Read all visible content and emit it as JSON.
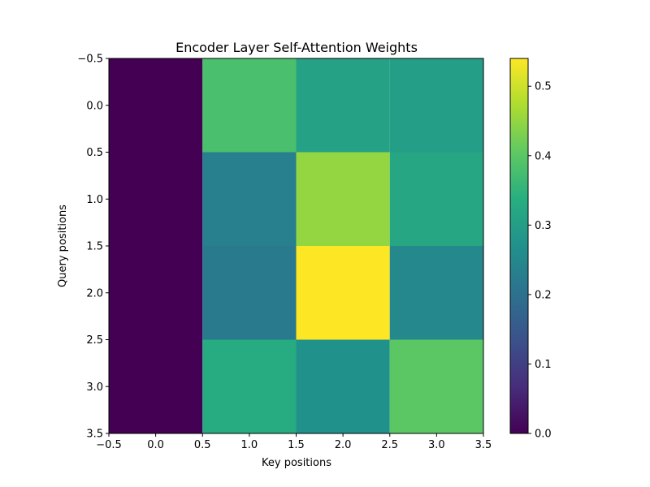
{
  "chart_data": {
    "type": "heatmap",
    "title": "Encoder Layer Self-Attention Weights",
    "xlabel": "Key positions",
    "ylabel": "Query positions",
    "xlim": [
      -0.5,
      3.5
    ],
    "ylim": [
      3.5,
      -0.5
    ],
    "x_ticks": [
      "−0.5",
      "0.0",
      "0.5",
      "1.0",
      "1.5",
      "2.0",
      "2.5",
      "3.0",
      "3.5"
    ],
    "y_ticks": [
      "−0.5",
      "0.0",
      "0.5",
      "1.0",
      "1.5",
      "2.0",
      "2.5",
      "3.0",
      "3.5"
    ],
    "matrix": [
      [
        0.0,
        0.38,
        0.31,
        0.3
      ],
      [
        0.0,
        0.23,
        0.45,
        0.32
      ],
      [
        0.0,
        0.22,
        0.54,
        0.25
      ],
      [
        0.0,
        0.33,
        0.27,
        0.4
      ]
    ],
    "colormap": "viridis",
    "colorbar": {
      "vmin": 0.0,
      "vmax": 0.54,
      "ticks": [
        0.0,
        0.1,
        0.2,
        0.3,
        0.4,
        0.5
      ],
      "tick_labels": [
        "0.0",
        "0.1",
        "0.2",
        "0.3",
        "0.4",
        "0.5"
      ]
    },
    "grid": false
  }
}
